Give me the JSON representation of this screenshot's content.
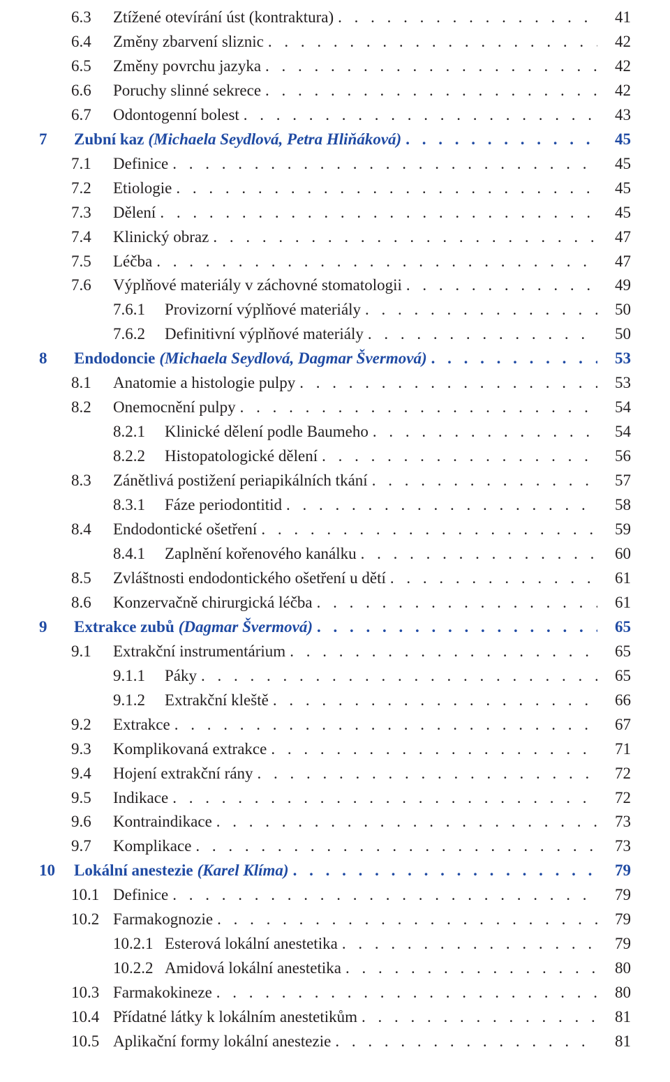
{
  "colors": {
    "blue": "#1f4aa3",
    "black": "#231f20",
    "bg": "#ffffff"
  },
  "font": {
    "family": "Times New Roman",
    "size_pt": 17
  },
  "dot_string": ". . . . . . . . . . . . . . . . . . . . . . . . . . . . . . . . . . . . . . . . . . . . . . . . . . . . . . . . . . . . . . . . . . . . . . . . . . . . . . . . . . . . . . . . . . . . . . . . . . . . . . . . . . . . . . . . . .",
  "toc": [
    {
      "indent": 1,
      "num": "6.3",
      "title": "Ztížené otevírání úst (kontraktura)",
      "page": "41"
    },
    {
      "indent": 1,
      "num": "6.4",
      "title": "Změny zbarvení sliznic",
      "page": "42"
    },
    {
      "indent": 1,
      "num": "6.5",
      "title": "Změny povrchu jazyka",
      "page": "42"
    },
    {
      "indent": 1,
      "num": "6.6",
      "title": "Poruchy slinné sekrece",
      "page": "42"
    },
    {
      "indent": 1,
      "num": "6.7",
      "title": "Odontogenní bolest",
      "page": "43"
    },
    {
      "indent": 0,
      "num": "7",
      "title": "Zubní kaz",
      "author": "(Michaela Seydlová, Petra Hliňáková)",
      "page": "45",
      "blue": true,
      "bold": true,
      "author_italic": true
    },
    {
      "indent": 1,
      "num": "7.1",
      "title": "Definice",
      "page": "45"
    },
    {
      "indent": 1,
      "num": "7.2",
      "title": "Etiologie",
      "page": "45"
    },
    {
      "indent": 1,
      "num": "7.3",
      "title": "Dělení",
      "page": "45"
    },
    {
      "indent": 1,
      "num": "7.4",
      "title": "Klinický obraz",
      "page": "47"
    },
    {
      "indent": 1,
      "num": "7.5",
      "title": "Léčba",
      "page": "47"
    },
    {
      "indent": 1,
      "num": "7.6",
      "title": "Výplňové materiály v záchovné stomatologii",
      "page": "49"
    },
    {
      "indent": 2,
      "num": "7.6.1",
      "title": "Provizorní výplňové materiály",
      "page": "50"
    },
    {
      "indent": 2,
      "num": "7.6.2",
      "title": "Definitivní výplňové materiály",
      "page": "50"
    },
    {
      "indent": 0,
      "num": "8",
      "title": "Endodoncie",
      "author": "(Michaela Seydlová, Dagmar Švermová)",
      "page": "53",
      "blue": true,
      "bold": true,
      "author_italic": true
    },
    {
      "indent": 1,
      "num": "8.1",
      "title": "Anatomie a histologie pulpy",
      "page": "53"
    },
    {
      "indent": 1,
      "num": "8.2",
      "title": "Onemocnění pulpy",
      "page": "54"
    },
    {
      "indent": 2,
      "num": "8.2.1",
      "title": "Klinické dělení podle Baumeho",
      "page": "54"
    },
    {
      "indent": 2,
      "num": "8.2.2",
      "title": "Histopatologické dělení",
      "page": "56"
    },
    {
      "indent": 1,
      "num": "8.3",
      "title": "Zánětlivá postižení periapikálních tkání",
      "page": "57"
    },
    {
      "indent": 2,
      "num": "8.3.1",
      "title": "Fáze periodontitid",
      "page": "58"
    },
    {
      "indent": 1,
      "num": "8.4",
      "title": "Endodontické ošetření",
      "page": "59"
    },
    {
      "indent": 2,
      "num": "8.4.1",
      "title": "Zaplnění kořenového kanálku",
      "page": "60"
    },
    {
      "indent": 1,
      "num": "8.5",
      "title": "Zvláštnosti endodontického ošetření u dětí",
      "page": "61"
    },
    {
      "indent": 1,
      "num": "8.6",
      "title": "Konzervačně chirurgická léčba",
      "page": "61"
    },
    {
      "indent": 0,
      "num": "9",
      "title": "Extrakce zubů",
      "author": "(Dagmar Švermová)",
      "page": "65",
      "blue": true,
      "bold": true,
      "author_italic": true
    },
    {
      "indent": 1,
      "num": "9.1",
      "title": "Extrakční instrumentárium",
      "page": "65"
    },
    {
      "indent": 2,
      "num": "9.1.1",
      "title": "Páky",
      "page": "65"
    },
    {
      "indent": 2,
      "num": "9.1.2",
      "title": "Extrakční kleště",
      "page": "66"
    },
    {
      "indent": 1,
      "num": "9.2",
      "title": "Extrakce",
      "page": "67"
    },
    {
      "indent": 1,
      "num": "9.3",
      "title": "Komplikovaná extrakce",
      "page": "71"
    },
    {
      "indent": 1,
      "num": "9.4",
      "title": "Hojení extrakční rány",
      "page": "72"
    },
    {
      "indent": 1,
      "num": "9.5",
      "title": "Indikace",
      "page": "72"
    },
    {
      "indent": 1,
      "num": "9.6",
      "title": "Kontraindikace",
      "page": "73"
    },
    {
      "indent": 1,
      "num": "9.7",
      "title": "Komplikace",
      "page": "73"
    },
    {
      "indent": 0,
      "num": "10",
      "title": "Lokální anestezie",
      "author": "(Karel Klíma)",
      "page": "79",
      "blue": true,
      "bold": true,
      "author_italic": true
    },
    {
      "indent": 1,
      "num": "10.1",
      "title": "Definice",
      "page": "79"
    },
    {
      "indent": 1,
      "num": "10.2",
      "title": "Farmakognozie",
      "page": "79"
    },
    {
      "indent": 2,
      "num": "10.2.1",
      "title": "Esterová lokální anestetika",
      "page": "79"
    },
    {
      "indent": 2,
      "num": "10.2.2",
      "title": "Amidová lokální anestetika",
      "page": "80"
    },
    {
      "indent": 1,
      "num": "10.3",
      "title": "Farmakokineze",
      "page": "80"
    },
    {
      "indent": 1,
      "num": "10.4",
      "title": "Přídatné látky k lokálním anestetikům",
      "page": "81"
    },
    {
      "indent": 1,
      "num": "10.5",
      "title": "Aplikační formy lokální anestezie",
      "page": "81"
    }
  ]
}
